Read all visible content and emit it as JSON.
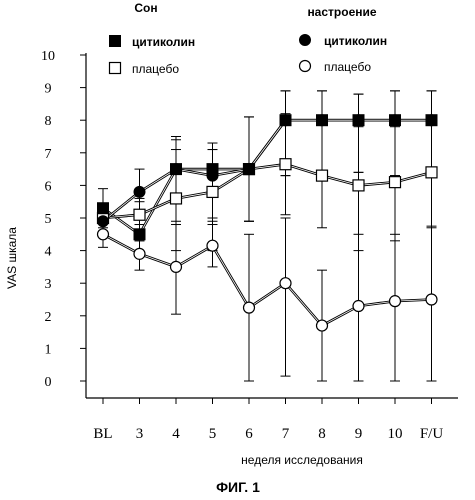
{
  "chart_data": {
    "type": "line",
    "xlabel": "неделя исследования",
    "ylabel": "VAS шкала",
    "caption": "ФИГ. 1",
    "categories": [
      "BL",
      "3",
      "4",
      "5",
      "6",
      "7",
      "8",
      "9",
      "10",
      "F/U"
    ],
    "ylim": [
      0,
      10
    ],
    "yticks": [
      "0",
      "1",
      "2",
      "3",
      "4",
      "5",
      "6",
      "7",
      "8",
      "9",
      "10"
    ],
    "legend_groups": [
      {
        "title": "Сон",
        "entries": [
          {
            "label": "цитиколин",
            "marker": "filled-square"
          },
          {
            "label": "плацебо",
            "marker": "open-square"
          }
        ]
      },
      {
        "title": "настроение",
        "entries": [
          {
            "label": "цитиколин",
            "marker": "filled-circle"
          },
          {
            "label": "плацебо",
            "marker": "open-circle"
          }
        ]
      }
    ],
    "series": [
      {
        "group": "Сон",
        "label": "цитиколин",
        "marker": "filled-square",
        "values": [
          5.3,
          4.5,
          6.5,
          6.5,
          6.5,
          8.0,
          8.0,
          8.0,
          8.0,
          8.0
        ],
        "error_low": [
          4.7,
          4.3,
          5.5,
          5.0,
          4.9,
          6.3,
          6.3,
          6.4,
          6.3,
          6.3
        ],
        "error_high": [
          5.9,
          5.5,
          7.5,
          7.3,
          8.1,
          8.9,
          8.9,
          8.8,
          8.9,
          8.9
        ]
      },
      {
        "group": "Сон",
        "label": "плацебо",
        "marker": "open-square",
        "values": [
          5.0,
          5.1,
          5.6,
          5.8,
          6.5,
          6.65,
          6.3,
          6.0,
          6.1,
          6.4
        ],
        "error_low": [
          4.6,
          4.4,
          4.0,
          4.0,
          4.9,
          5.1,
          4.7,
          4.0,
          4.3,
          4.7
        ],
        "error_high": [
          5.4,
          5.6,
          7.1,
          7.1,
          8.1,
          8.2,
          7.9,
          7.8,
          7.8,
          8.0
        ]
      },
      {
        "group": "настроение",
        "label": "цитиколин",
        "marker": "filled-circle",
        "values": [
          4.9,
          5.8,
          6.5,
          6.3,
          6.5,
          8.0,
          8.0,
          8.0,
          8.0,
          8.0
        ],
        "error_low": [
          4.5,
          4.8,
          4.8,
          4.9,
          4.9,
          6.3,
          6.3,
          6.4,
          6.3,
          6.3
        ],
        "error_high": [
          5.3,
          6.5,
          7.4,
          7.1,
          8.1,
          8.9,
          8.9,
          8.8,
          8.9,
          8.9
        ]
      },
      {
        "group": "настроение",
        "label": "плацебо",
        "marker": "open-circle",
        "values": [
          4.5,
          3.9,
          3.5,
          4.15,
          2.25,
          3.0,
          1.7,
          2.3,
          2.45,
          2.5
        ],
        "error_low": [
          4.1,
          3.4,
          2.05,
          3.5,
          0.0,
          0.15,
          0.0,
          0.0,
          0.0,
          0.0
        ],
        "error_high": [
          4.9,
          4.3,
          4.9,
          4.8,
          4.5,
          5.0,
          3.4,
          4.5,
          4.5,
          4.75
        ]
      }
    ]
  }
}
